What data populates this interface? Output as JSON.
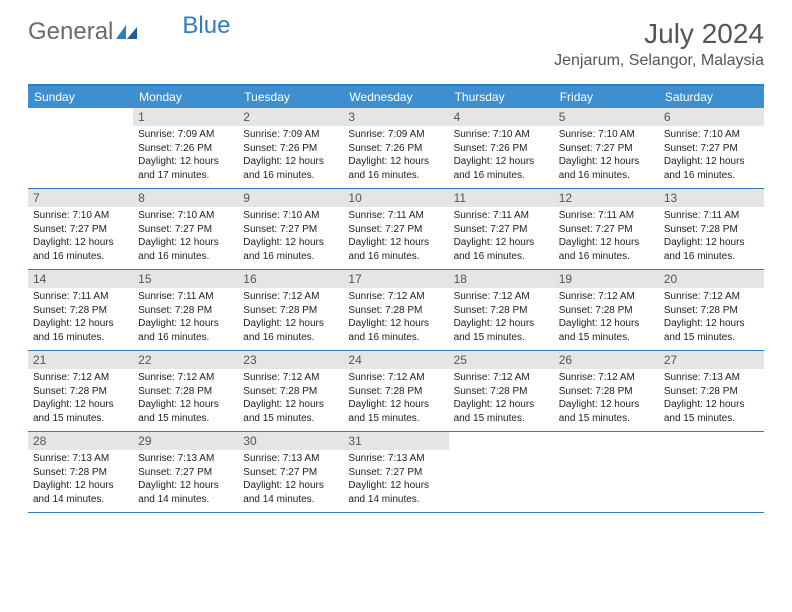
{
  "logo": {
    "part1": "General",
    "part2": "Blue"
  },
  "title": "July 2024",
  "location": "Jenjarum, Selangor, Malaysia",
  "colors": {
    "header_bar": "#3d8fcf",
    "border": "#2f7dc0",
    "daynum_bg": "#e5e5e5",
    "text": "#333333",
    "logo_gray": "#6a6a6a",
    "logo_blue": "#2f7dc0"
  },
  "dow": [
    "Sunday",
    "Monday",
    "Tuesday",
    "Wednesday",
    "Thursday",
    "Friday",
    "Saturday"
  ],
  "weeks": [
    [
      null,
      {
        "n": "1",
        "sr": "7:09 AM",
        "ss": "7:26 PM",
        "dl": "12 hours and 17 minutes."
      },
      {
        "n": "2",
        "sr": "7:09 AM",
        "ss": "7:26 PM",
        "dl": "12 hours and 16 minutes."
      },
      {
        "n": "3",
        "sr": "7:09 AM",
        "ss": "7:26 PM",
        "dl": "12 hours and 16 minutes."
      },
      {
        "n": "4",
        "sr": "7:10 AM",
        "ss": "7:26 PM",
        "dl": "12 hours and 16 minutes."
      },
      {
        "n": "5",
        "sr": "7:10 AM",
        "ss": "7:27 PM",
        "dl": "12 hours and 16 minutes."
      },
      {
        "n": "6",
        "sr": "7:10 AM",
        "ss": "7:27 PM",
        "dl": "12 hours and 16 minutes."
      }
    ],
    [
      {
        "n": "7",
        "sr": "7:10 AM",
        "ss": "7:27 PM",
        "dl": "12 hours and 16 minutes."
      },
      {
        "n": "8",
        "sr": "7:10 AM",
        "ss": "7:27 PM",
        "dl": "12 hours and 16 minutes."
      },
      {
        "n": "9",
        "sr": "7:10 AM",
        "ss": "7:27 PM",
        "dl": "12 hours and 16 minutes."
      },
      {
        "n": "10",
        "sr": "7:11 AM",
        "ss": "7:27 PM",
        "dl": "12 hours and 16 minutes."
      },
      {
        "n": "11",
        "sr": "7:11 AM",
        "ss": "7:27 PM",
        "dl": "12 hours and 16 minutes."
      },
      {
        "n": "12",
        "sr": "7:11 AM",
        "ss": "7:27 PM",
        "dl": "12 hours and 16 minutes."
      },
      {
        "n": "13",
        "sr": "7:11 AM",
        "ss": "7:28 PM",
        "dl": "12 hours and 16 minutes."
      }
    ],
    [
      {
        "n": "14",
        "sr": "7:11 AM",
        "ss": "7:28 PM",
        "dl": "12 hours and 16 minutes."
      },
      {
        "n": "15",
        "sr": "7:11 AM",
        "ss": "7:28 PM",
        "dl": "12 hours and 16 minutes."
      },
      {
        "n": "16",
        "sr": "7:12 AM",
        "ss": "7:28 PM",
        "dl": "12 hours and 16 minutes."
      },
      {
        "n": "17",
        "sr": "7:12 AM",
        "ss": "7:28 PM",
        "dl": "12 hours and 16 minutes."
      },
      {
        "n": "18",
        "sr": "7:12 AM",
        "ss": "7:28 PM",
        "dl": "12 hours and 15 minutes."
      },
      {
        "n": "19",
        "sr": "7:12 AM",
        "ss": "7:28 PM",
        "dl": "12 hours and 15 minutes."
      },
      {
        "n": "20",
        "sr": "7:12 AM",
        "ss": "7:28 PM",
        "dl": "12 hours and 15 minutes."
      }
    ],
    [
      {
        "n": "21",
        "sr": "7:12 AM",
        "ss": "7:28 PM",
        "dl": "12 hours and 15 minutes."
      },
      {
        "n": "22",
        "sr": "7:12 AM",
        "ss": "7:28 PM",
        "dl": "12 hours and 15 minutes."
      },
      {
        "n": "23",
        "sr": "7:12 AM",
        "ss": "7:28 PM",
        "dl": "12 hours and 15 minutes."
      },
      {
        "n": "24",
        "sr": "7:12 AM",
        "ss": "7:28 PM",
        "dl": "12 hours and 15 minutes."
      },
      {
        "n": "25",
        "sr": "7:12 AM",
        "ss": "7:28 PM",
        "dl": "12 hours and 15 minutes."
      },
      {
        "n": "26",
        "sr": "7:12 AM",
        "ss": "7:28 PM",
        "dl": "12 hours and 15 minutes."
      },
      {
        "n": "27",
        "sr": "7:13 AM",
        "ss": "7:28 PM",
        "dl": "12 hours and 15 minutes."
      }
    ],
    [
      {
        "n": "28",
        "sr": "7:13 AM",
        "ss": "7:28 PM",
        "dl": "12 hours and 14 minutes."
      },
      {
        "n": "29",
        "sr": "7:13 AM",
        "ss": "7:27 PM",
        "dl": "12 hours and 14 minutes."
      },
      {
        "n": "30",
        "sr": "7:13 AM",
        "ss": "7:27 PM",
        "dl": "12 hours and 14 minutes."
      },
      {
        "n": "31",
        "sr": "7:13 AM",
        "ss": "7:27 PM",
        "dl": "12 hours and 14 minutes."
      },
      null,
      null,
      null
    ]
  ],
  "labels": {
    "sunrise": "Sunrise:",
    "sunset": "Sunset:",
    "daylight": "Daylight:"
  }
}
